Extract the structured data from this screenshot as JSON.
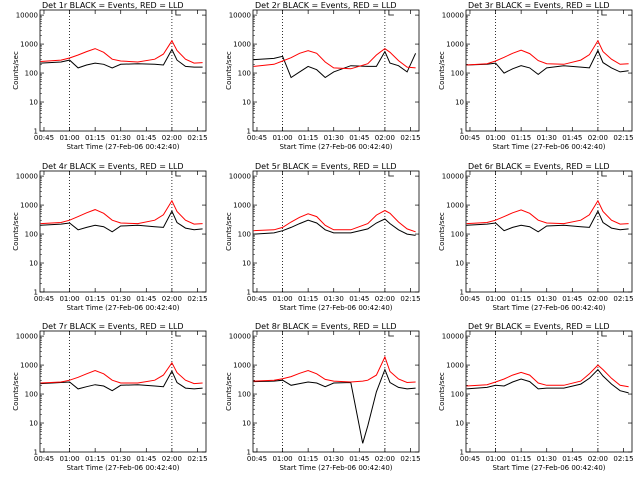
{
  "figure": {
    "xlabel": "Start Time (27-Feb-06 00:42:40)",
    "ylabel": "Counts/sec",
    "x_ticks": [
      "00:45",
      "01:00",
      "01:15",
      "01:30",
      "01:45",
      "02:00",
      "02:15"
    ],
    "y_ticks": [
      "1",
      "10",
      "100",
      "1000",
      "10000"
    ]
  },
  "chart_data": [
    {
      "type": "line",
      "title": "Det 1r BLACK = Events, RED = LLD",
      "xlabel": "Start Time (27-Feb-06 00:42:40)",
      "ylabel": "Counts/sec",
      "yscale": "log",
      "ylim": [
        1,
        15000
      ],
      "xlim": [
        "00:42:40",
        "02:20"
      ],
      "x": [
        "00:43",
        "00:55",
        "01:00",
        "01:05",
        "01:10",
        "01:15",
        "01:20",
        "01:25",
        "01:30",
        "01:40",
        "01:50",
        "01:55",
        "02:00",
        "02:03",
        "02:08",
        "02:13",
        "02:18"
      ],
      "series": [
        {
          "name": "Events",
          "color": "#000000",
          "values": [
            220,
            240,
            280,
            150,
            190,
            220,
            200,
            150,
            200,
            210,
            200,
            190,
            650,
            280,
            170,
            160,
            160
          ]
        },
        {
          "name": "LLD",
          "color": "#ff0000",
          "values": [
            250,
            280,
            330,
            420,
            550,
            700,
            520,
            300,
            260,
            240,
            300,
            450,
            1300,
            600,
            300,
            220,
            230
          ]
        }
      ]
    },
    {
      "type": "line",
      "title": "Det 2r BLACK = Events, RED = LLD",
      "xlabel": "Start Time (27-Feb-06 00:42:40)",
      "ylabel": "Counts/sec",
      "yscale": "log",
      "ylim": [
        1,
        15000
      ],
      "xlim": [
        "00:42:40",
        "02:20"
      ],
      "x": [
        "00:43",
        "00:55",
        "01:00",
        "01:05",
        "01:10",
        "01:15",
        "01:20",
        "01:25",
        "01:30",
        "01:40",
        "01:50",
        "01:55",
        "02:00",
        "02:03",
        "02:08",
        "02:13",
        "02:18"
      ],
      "series": [
        {
          "name": "Events",
          "color": "#000000",
          "values": [
            290,
            320,
            380,
            70,
            110,
            170,
            130,
            70,
            110,
            180,
            170,
            170,
            550,
            220,
            180,
            110,
            480
          ]
        },
        {
          "name": "LLD",
          "color": "#ff0000",
          "values": [
            170,
            200,
            260,
            340,
            480,
            590,
            480,
            240,
            150,
            140,
            210,
            420,
            700,
            520,
            270,
            160,
            150
          ]
        }
      ]
    },
    {
      "type": "line",
      "title": "Det 3r BLACK = Events, RED = LLD",
      "xlabel": "Start Time (27-Feb-06 00:42:40)",
      "ylabel": "Counts/sec",
      "yscale": "log",
      "ylim": [
        1,
        15000
      ],
      "xlim": [
        "00:42:40",
        "02:20"
      ],
      "x": [
        "00:43",
        "00:55",
        "01:00",
        "01:05",
        "01:10",
        "01:15",
        "01:20",
        "01:25",
        "01:30",
        "01:40",
        "01:50",
        "01:55",
        "02:00",
        "02:03",
        "02:08",
        "02:13",
        "02:18"
      ],
      "series": [
        {
          "name": "Events",
          "color": "#000000",
          "values": [
            190,
            200,
            220,
            100,
            140,
            180,
            150,
            90,
            150,
            180,
            160,
            150,
            600,
            230,
            150,
            110,
            120
          ]
        },
        {
          "name": "LLD",
          "color": "#ff0000",
          "values": [
            190,
            210,
            260,
            350,
            480,
            620,
            470,
            270,
            210,
            200,
            280,
            430,
            1300,
            550,
            300,
            200,
            210
          ]
        }
      ]
    },
    {
      "type": "line",
      "title": "Det 4r BLACK = Events, RED = LLD",
      "xlabel": "Start Time (27-Feb-06 00:42:40)",
      "ylabel": "Counts/sec",
      "yscale": "log",
      "ylim": [
        1,
        15000
      ],
      "xlim": [
        "00:42:40",
        "02:20"
      ],
      "x": [
        "00:43",
        "00:55",
        "01:00",
        "01:05",
        "01:10",
        "01:15",
        "01:20",
        "01:25",
        "01:30",
        "01:40",
        "01:50",
        "01:55",
        "02:00",
        "02:03",
        "02:08",
        "02:13",
        "02:18"
      ],
      "series": [
        {
          "name": "Events",
          "color": "#000000",
          "values": [
            200,
            220,
            240,
            140,
            170,
            200,
            180,
            120,
            190,
            200,
            180,
            170,
            620,
            250,
            160,
            140,
            150
          ]
        },
        {
          "name": "LLD",
          "color": "#ff0000",
          "values": [
            230,
            250,
            300,
            400,
            540,
            700,
            520,
            300,
            240,
            230,
            300,
            460,
            1400,
            600,
            300,
            220,
            230
          ]
        }
      ]
    },
    {
      "type": "line",
      "title": "Det 5r BLACK = Events, RED = LLD",
      "xlabel": "Start Time (27-Feb-06 00:42:40)",
      "ylabel": "Counts/sec",
      "yscale": "log",
      "ylim": [
        1,
        15000
      ],
      "xlim": [
        "00:42:40",
        "02:20"
      ],
      "x": [
        "00:43",
        "00:55",
        "01:00",
        "01:05",
        "01:10",
        "01:15",
        "01:20",
        "01:25",
        "01:30",
        "01:40",
        "01:50",
        "01:55",
        "02:00",
        "02:03",
        "02:08",
        "02:13",
        "02:18"
      ],
      "series": [
        {
          "name": "Events",
          "color": "#000000",
          "values": [
            100,
            110,
            130,
            170,
            230,
            300,
            240,
            140,
            110,
            110,
            150,
            240,
            330,
            230,
            140,
            100,
            90
          ]
        },
        {
          "name": "LLD",
          "color": "#ff0000",
          "values": [
            130,
            140,
            170,
            260,
            380,
            500,
            400,
            200,
            140,
            140,
            230,
            450,
            650,
            520,
            260,
            150,
            120
          ]
        }
      ]
    },
    {
      "type": "line",
      "title": "Det 6r BLACK = Events, RED = LLD",
      "xlabel": "Start Time (27-Feb-06 00:42:40)",
      "ylabel": "Counts/sec",
      "yscale": "log",
      "ylim": [
        1,
        15000
      ],
      "xlim": [
        "00:42:40",
        "02:20"
      ],
      "x": [
        "00:43",
        "00:55",
        "01:00",
        "01:05",
        "01:10",
        "01:15",
        "01:20",
        "01:25",
        "01:30",
        "01:40",
        "01:50",
        "01:55",
        "02:00",
        "02:03",
        "02:08",
        "02:13",
        "02:18"
      ],
      "series": [
        {
          "name": "Events",
          "color": "#000000",
          "values": [
            200,
            220,
            240,
            130,
            170,
            200,
            180,
            120,
            190,
            200,
            180,
            170,
            620,
            250,
            160,
            140,
            150
          ]
        },
        {
          "name": "LLD",
          "color": "#ff0000",
          "values": [
            230,
            250,
            300,
            400,
            540,
            680,
            520,
            300,
            240,
            230,
            300,
            460,
            1400,
            600,
            300,
            220,
            230
          ]
        }
      ]
    },
    {
      "type": "line",
      "title": "Det 7r BLACK = Events, RED = LLD",
      "xlabel": "Start Time (27-Feb-06 00:42:40)",
      "ylabel": "Counts/sec",
      "yscale": "log",
      "ylim": [
        1,
        15000
      ],
      "xlim": [
        "00:42:40",
        "02:20"
      ],
      "x": [
        "00:43",
        "00:55",
        "01:00",
        "01:05",
        "01:10",
        "01:15",
        "01:20",
        "01:25",
        "01:30",
        "01:40",
        "01:50",
        "01:55",
        "02:00",
        "02:03",
        "02:08",
        "02:13",
        "02:18"
      ],
      "series": [
        {
          "name": "Events",
          "color": "#000000",
          "values": [
            230,
            250,
            260,
            150,
            180,
            210,
            190,
            130,
            200,
            210,
            190,
            180,
            620,
            250,
            160,
            150,
            160
          ]
        },
        {
          "name": "LLD",
          "color": "#ff0000",
          "values": [
            240,
            260,
            300,
            380,
            500,
            650,
            500,
            300,
            240,
            240,
            300,
            450,
            1200,
            550,
            300,
            230,
            240
          ]
        }
      ]
    },
    {
      "type": "line",
      "title": "Det 8r BLACK = Events, RED = LLD",
      "xlabel": "Start Time (27-Feb-06 00:42:40)",
      "ylabel": "Counts/sec",
      "yscale": "log",
      "ylim": [
        1,
        15000
      ],
      "xlim": [
        "00:42:40",
        "02:20"
      ],
      "x": [
        "00:43",
        "00:55",
        "01:00",
        "01:05",
        "01:10",
        "01:15",
        "01:20",
        "01:25",
        "01:30",
        "01:40",
        "01:47",
        "01:50",
        "01:55",
        "02:00",
        "02:03",
        "02:08",
        "02:13",
        "02:18"
      ],
      "series": [
        {
          "name": "Events",
          "color": "#000000",
          "values": [
            270,
            280,
            300,
            200,
            230,
            260,
            240,
            180,
            240,
            250,
            2,
            8,
            120,
            700,
            250,
            170,
            150,
            160
          ]
        },
        {
          "name": "LLD",
          "color": "#ff0000",
          "values": [
            280,
            300,
            340,
            400,
            520,
            650,
            500,
            320,
            280,
            260,
            280,
            300,
            450,
            1900,
            600,
            330,
            250,
            260
          ]
        }
      ]
    },
    {
      "type": "line",
      "title": "Det 9r BLACK = Events, RED = LLD",
      "xlabel": "Start Time (27-Feb-06 00:42:40)",
      "ylabel": "Counts/sec",
      "yscale": "log",
      "ylim": [
        1,
        15000
      ],
      "xlim": [
        "00:42:40",
        "02:20"
      ],
      "x": [
        "00:43",
        "00:55",
        "01:00",
        "01:05",
        "01:10",
        "01:15",
        "01:20",
        "01:25",
        "01:30",
        "01:40",
        "01:50",
        "01:55",
        "02:00",
        "02:03",
        "02:08",
        "02:13",
        "02:18"
      ],
      "series": [
        {
          "name": "Events",
          "color": "#000000",
          "values": [
            150,
            170,
            200,
            190,
            260,
            330,
            270,
            150,
            160,
            160,
            220,
            350,
            700,
            420,
            220,
            130,
            110
          ]
        },
        {
          "name": "LLD",
          "color": "#ff0000",
          "values": [
            190,
            210,
            260,
            330,
            450,
            560,
            450,
            240,
            200,
            200,
            280,
            500,
            1000,
            700,
            350,
            200,
            180
          ]
        }
      ]
    }
  ]
}
